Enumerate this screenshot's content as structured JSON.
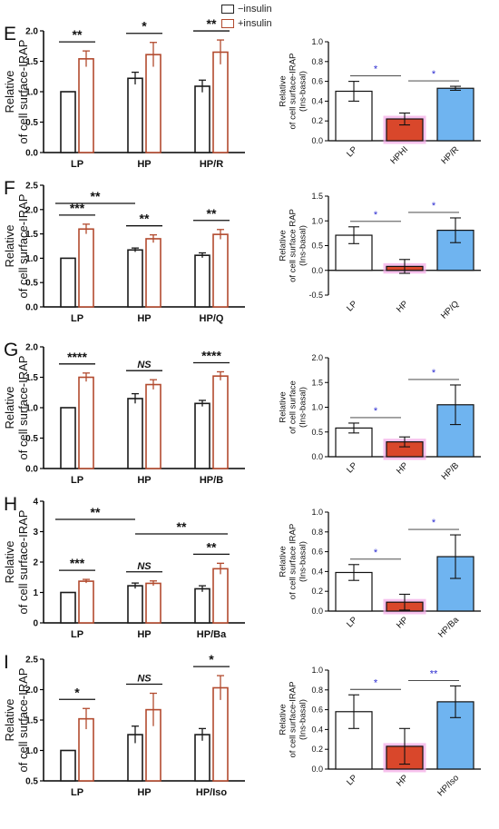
{
  "legend": {
    "basal_label": "−insulin",
    "insulin_label": "+insulin"
  },
  "colors": {
    "basal": "#1a1a1a",
    "insulin": "#b24a2e",
    "lp": "#ffffff",
    "hp": "#d9472b",
    "rescue": "#6fb4f0",
    "sig_star": "#2a2ad0",
    "axis": "#000000",
    "hp_glow": "#f4a6e6"
  },
  "chart_data": [
    {
      "panel": "E",
      "type": "bar",
      "ylabel": "Relative\nof cell surface-IRAP",
      "ylim": [
        0,
        2.0
      ],
      "ytick_labels": [
        "0.0",
        "0.5",
        "1.0",
        "1.5",
        "2.0"
      ],
      "yticks": [
        0,
        0.5,
        1.0,
        1.5,
        2.0
      ],
      "categories": [
        "LP",
        "HP",
        "HP/R"
      ],
      "series": [
        {
          "name": "−insulin",
          "values": [
            1.0,
            1.22,
            1.09
          ],
          "errors": [
            0,
            0.1,
            0.1
          ]
        },
        {
          "name": "+insulin",
          "values": [
            1.54,
            1.61,
            1.65
          ],
          "errors": [
            0.13,
            0.2,
            0.2
          ]
        }
      ],
      "significance": [
        {
          "group": 0,
          "label": "**"
        },
        {
          "group": 1,
          "label": "*"
        },
        {
          "group": 2,
          "label": "**"
        }
      ],
      "cross": []
    },
    {
      "panel": "E",
      "type": "bar",
      "ylabel": "Relative\nof cell surface-IRAP\n(Ins-basal)",
      "ylim": [
        0,
        1.0
      ],
      "ytick_labels": [
        "0.0",
        "0.2",
        "0.4",
        "0.6",
        "0.8",
        "1.0"
      ],
      "yticks": [
        0,
        0.2,
        0.4,
        0.6,
        0.8,
        1.0
      ],
      "categories": [
        "LP",
        "HPHI",
        "HP/R"
      ],
      "values": [
        0.5,
        0.22,
        0.53
      ],
      "errors": [
        0.1,
        0.06,
        0.02
      ],
      "significance": [
        {
          "from": 0,
          "to": 1,
          "label": "*"
        },
        {
          "from": 1,
          "to": 2,
          "label": "*"
        }
      ]
    },
    {
      "panel": "F",
      "type": "bar",
      "ylabel": "Relative\nof cell surface-IRAP",
      "ylim": [
        0,
        2.5
      ],
      "ytick_labels": [
        "0.0",
        "0.5",
        "1.0",
        "1.5",
        "2.0",
        "2.5"
      ],
      "yticks": [
        0,
        0.5,
        1.0,
        1.5,
        2.0,
        2.5
      ],
      "categories": [
        "LP",
        "HP",
        "HP/Q"
      ],
      "series": [
        {
          "name": "−insulin",
          "values": [
            1.0,
            1.17,
            1.06
          ],
          "errors": [
            0,
            0.04,
            0.05
          ]
        },
        {
          "name": "+insulin",
          "values": [
            1.6,
            1.4,
            1.49
          ],
          "errors": [
            0.1,
            0.08,
            0.1
          ]
        }
      ],
      "significance": [
        {
          "group": 0,
          "label": "***"
        },
        {
          "group": 1,
          "label": "**"
        },
        {
          "group": 2,
          "label": "**"
        }
      ],
      "cross": [
        {
          "from": 0,
          "to": 1,
          "label": "**"
        }
      ]
    },
    {
      "panel": "F",
      "type": "bar",
      "ylabel": "Relative\nof cell surface RAP\n(Ins-basal)",
      "ylim": [
        -0.5,
        1.5
      ],
      "ytick_labels": [
        "-0.5",
        "0.0",
        "0.5",
        "1.0",
        "1.5"
      ],
      "yticks": [
        -0.5,
        0,
        0.5,
        1.0,
        1.5
      ],
      "categories": [
        "LP",
        "HP",
        "HP/Q"
      ],
      "values": [
        0.71,
        0.08,
        0.81
      ],
      "errors": [
        0.17,
        0.14,
        0.25
      ],
      "significance": [
        {
          "from": 0,
          "to": 1,
          "label": "*"
        },
        {
          "from": 1,
          "to": 2,
          "label": "*"
        }
      ]
    },
    {
      "panel": "G",
      "type": "bar",
      "ylabel": "Relative\nof cell surface-IRAP",
      "ylim": [
        0,
        2.0
      ],
      "ytick_labels": [
        "0.0",
        "0.5",
        "1.0",
        "1.5",
        "2.0"
      ],
      "yticks": [
        0,
        0.5,
        1.0,
        1.5,
        2.0
      ],
      "categories": [
        "LP",
        "HP",
        "HP/B"
      ],
      "series": [
        {
          "name": "−insulin",
          "values": [
            1.0,
            1.15,
            1.07
          ],
          "errors": [
            0,
            0.08,
            0.05
          ]
        },
        {
          "name": "+insulin",
          "values": [
            1.5,
            1.38,
            1.52
          ],
          "errors": [
            0.07,
            0.08,
            0.07
          ]
        }
      ],
      "significance": [
        {
          "group": 0,
          "label": "****"
        },
        {
          "group": 1,
          "label": "NS"
        },
        {
          "group": 2,
          "label": "****"
        }
      ],
      "cross": []
    },
    {
      "panel": "G",
      "type": "bar",
      "ylabel": "Relative\nof cell surface\n(Ins-basal)",
      "ylim": [
        0,
        2.0
      ],
      "ytick_labels": [
        "0.0",
        "0.5",
        "1.0",
        "1.5",
        "2.0"
      ],
      "yticks": [
        0,
        0.5,
        1.0,
        1.5,
        2.0
      ],
      "categories": [
        "LP",
        "HP",
        "HP/B"
      ],
      "values": [
        0.58,
        0.3,
        1.05
      ],
      "errors": [
        0.1,
        0.1,
        0.4
      ],
      "significance": [
        {
          "from": 0,
          "to": 1,
          "label": "*"
        },
        {
          "from": 1,
          "to": 2,
          "label": "*"
        }
      ]
    },
    {
      "panel": "H",
      "type": "bar",
      "ylabel": "Relative\nof cell surface-IRAP",
      "ylim": [
        0,
        4
      ],
      "ytick_labels": [
        "0",
        "1",
        "2",
        "3",
        "4"
      ],
      "yticks": [
        0,
        1,
        2,
        3,
        4
      ],
      "categories": [
        "LP",
        "HP",
        "HP/Ba"
      ],
      "series": [
        {
          "name": "−insulin",
          "values": [
            1.0,
            1.22,
            1.12
          ],
          "errors": [
            0,
            0.09,
            0.1
          ]
        },
        {
          "name": "+insulin",
          "values": [
            1.37,
            1.3,
            1.78
          ],
          "errors": [
            0.06,
            0.08,
            0.18
          ]
        }
      ],
      "significance": [
        {
          "group": 0,
          "label": "***"
        },
        {
          "group": 1,
          "label": "NS"
        },
        {
          "group": 2,
          "label": "**"
        }
      ],
      "cross": [
        {
          "from": 0,
          "to": 1,
          "label": "**"
        },
        {
          "from": 1,
          "to": 2,
          "label": "**"
        }
      ]
    },
    {
      "panel": "H",
      "type": "bar",
      "ylabel": "Relative\nof cell surface IRAP\n(Ins-basal)",
      "ylim": [
        0,
        1.0
      ],
      "ytick_labels": [
        "0.0",
        "0.2",
        "0.4",
        "0.6",
        "0.8",
        "1.0"
      ],
      "yticks": [
        0,
        0.2,
        0.4,
        0.6,
        0.8,
        1.0
      ],
      "categories": [
        "LP",
        "HP",
        "HP/Ba"
      ],
      "values": [
        0.39,
        0.09,
        0.55
      ],
      "errors": [
        0.08,
        0.08,
        0.22
      ],
      "significance": [
        {
          "from": 0,
          "to": 1,
          "label": "*"
        },
        {
          "from": 1,
          "to": 2,
          "label": "*"
        }
      ]
    },
    {
      "panel": "I",
      "type": "bar",
      "ylabel": "Relative\nof cell surface-IRAP",
      "ylim": [
        0.5,
        2.5
      ],
      "ytick_labels": [
        "0.5",
        "1.0",
        "1.5",
        "2.0",
        "2.5"
      ],
      "yticks": [
        0.5,
        1.0,
        1.5,
        2.0,
        2.5
      ],
      "categories": [
        "LP",
        "HP",
        "HP/Iso"
      ],
      "series": [
        {
          "name": "−insulin",
          "values": [
            1.0,
            1.26,
            1.26
          ],
          "errors": [
            0,
            0.14,
            0.1
          ]
        },
        {
          "name": "+insulin",
          "values": [
            1.52,
            1.67,
            2.03
          ],
          "errors": [
            0.17,
            0.27,
            0.2
          ]
        }
      ],
      "significance": [
        {
          "group": 0,
          "label": "*"
        },
        {
          "group": 1,
          "label": "NS"
        },
        {
          "group": 2,
          "label": "*"
        }
      ],
      "cross": []
    },
    {
      "panel": "I",
      "type": "bar",
      "ylabel": "Relative\nof cell surface-IRAP\n(Ins-basal)",
      "ylim": [
        0,
        1.0
      ],
      "ytick_labels": [
        "0.0",
        "0.2",
        "0.4",
        "0.6",
        "0.8",
        "1.0"
      ],
      "yticks": [
        0,
        0.2,
        0.4,
        0.6,
        0.8,
        1.0
      ],
      "categories": [
        "LP",
        "HP",
        "HP/Iso"
      ],
      "values": [
        0.58,
        0.23,
        0.68
      ],
      "errors": [
        0.17,
        0.18,
        0.16
      ],
      "significance": [
        {
          "from": 0,
          "to": 1,
          "label": "*"
        },
        {
          "from": 1,
          "to": 2,
          "label": "**"
        }
      ]
    }
  ]
}
